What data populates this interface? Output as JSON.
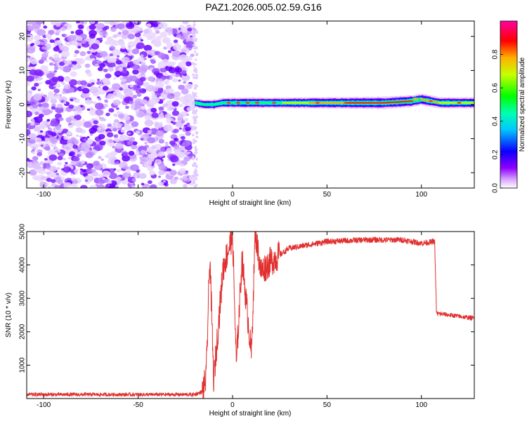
{
  "title": "PAZ1.2026.005.02.59.G16",
  "chart_data": [
    {
      "type": "heatmap",
      "xlabel": "Height of straight line (km)",
      "ylabel": "Frequency (Hz)",
      "xlim": [
        -109,
        128
      ],
      "ylim": [
        -24.5,
        24.5
      ],
      "xticks": [
        -100,
        -50,
        0,
        50,
        100
      ],
      "yticks": [
        -20,
        -10,
        0,
        10,
        20
      ],
      "noise_region_x": [
        -109,
        -21
      ],
      "signal_ridge": [
        {
          "x": -20,
          "y": 0.5,
          "amp": 0.3
        },
        {
          "x": -15,
          "y": 0.0,
          "amp": 0.4
        },
        {
          "x": -10,
          "y": 0.0,
          "amp": 0.45
        },
        {
          "x": -5,
          "y": 0.5,
          "amp": 0.5
        },
        {
          "x": 0,
          "y": 0.5,
          "amp": 0.6
        },
        {
          "x": 10,
          "y": 0.5,
          "amp": 0.6
        },
        {
          "x": 20,
          "y": 0.5,
          "amp": 0.55
        },
        {
          "x": 40,
          "y": 0.5,
          "amp": 0.7
        },
        {
          "x": 60,
          "y": 0.5,
          "amp": 0.8
        },
        {
          "x": 80,
          "y": 0.5,
          "amp": 0.9
        },
        {
          "x": 95,
          "y": 1.0,
          "amp": 0.85
        },
        {
          "x": 100,
          "y": 1.5,
          "amp": 0.8
        },
        {
          "x": 110,
          "y": 0.5,
          "amp": 0.7
        },
        {
          "x": 128,
          "y": 0.5,
          "amp": 0.7
        }
      ],
      "colorbar": {
        "label": "Normalized spectral amplitude",
        "range": [
          0.0,
          1.0
        ],
        "ticks": [
          "0.0",
          "0.2",
          "0.4",
          "0.6",
          "0.8"
        ],
        "colormap": "rainbow (white-magenta-blue-cyan-green-yellow-red-magenta)"
      }
    },
    {
      "type": "line",
      "xlabel": "Height of straight line (km)",
      "ylabel": "SNR (10 * v/v)",
      "xlim": [
        -109,
        128
      ],
      "ylim": [
        0,
        5000
      ],
      "xticks": [
        -100,
        -50,
        0,
        50,
        100
      ],
      "yticks": [
        1000,
        2000,
        3000,
        4000,
        5000
      ],
      "color": "#e0302f",
      "envelope": [
        {
          "x": -109,
          "y": 120
        },
        {
          "x": -20,
          "y": 120
        },
        {
          "x": -16,
          "y": 200
        },
        {
          "x": -14,
          "y": 600
        },
        {
          "x": -12,
          "y": 4300
        },
        {
          "x": -10,
          "y": 500
        },
        {
          "x": -5,
          "y": 3900
        },
        {
          "x": 0,
          "y": 4900
        },
        {
          "x": 2,
          "y": 1000
        },
        {
          "x": 5,
          "y": 4200
        },
        {
          "x": 10,
          "y": 1300
        },
        {
          "x": 12,
          "y": 5000
        },
        {
          "x": 15,
          "y": 3800
        },
        {
          "x": 20,
          "y": 4100
        },
        {
          "x": 30,
          "y": 4500
        },
        {
          "x": 50,
          "y": 4700
        },
        {
          "x": 70,
          "y": 4750
        },
        {
          "x": 90,
          "y": 4750
        },
        {
          "x": 100,
          "y": 4650
        },
        {
          "x": 107,
          "y": 4700
        },
        {
          "x": 108,
          "y": 2550
        },
        {
          "x": 115,
          "y": 2500
        },
        {
          "x": 128,
          "y": 2400
        }
      ]
    }
  ]
}
